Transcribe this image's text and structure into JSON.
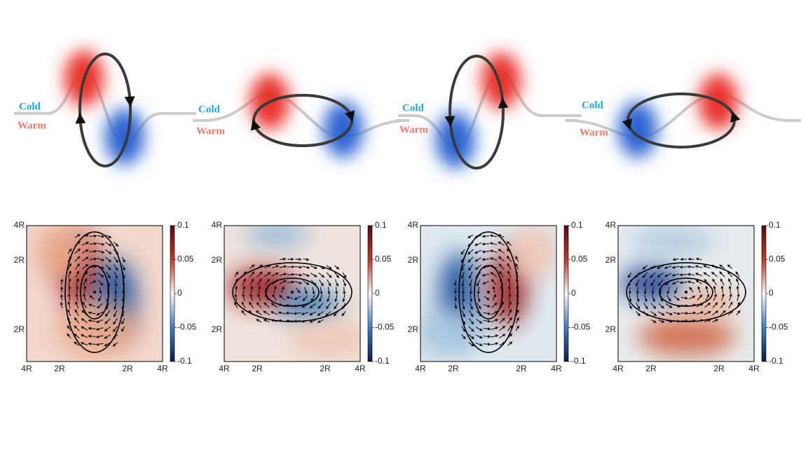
{
  "top_panels": [
    {
      "cold": "Cold",
      "warm": "Warm"
    },
    {
      "cold": "Cold",
      "warm": "Warm"
    },
    {
      "cold": "Cold",
      "warm": "Warm"
    },
    {
      "cold": "Cold",
      "warm": "Warm"
    }
  ],
  "bottom_panels": [
    {
      "y_ticks": [
        "4R",
        "2R",
        "2R"
      ],
      "x_ticks": [
        "4R",
        "2R",
        "2R",
        "4R"
      ],
      "colorbar_ticks": [
        "0.1",
        "0.05",
        "0",
        "-0.05",
        "-0.1"
      ]
    },
    {
      "y_ticks": [
        "4R",
        "2R",
        "2R"
      ],
      "x_ticks": [
        "4R",
        "2R",
        "2R",
        "4R"
      ],
      "colorbar_ticks": [
        "0.1",
        "0.05",
        "0",
        "-0.05",
        "-0.1"
      ]
    },
    {
      "y_ticks": [
        "4R",
        "2R",
        "2R"
      ],
      "x_ticks": [
        "4R",
        "2R",
        "2R",
        "4R"
      ],
      "colorbar_ticks": [
        "0.1",
        "0.05",
        "0",
        "-0.05",
        "-0.1"
      ]
    },
    {
      "y_ticks": [
        "4R",
        "2R",
        "2R"
      ],
      "x_ticks": [
        "4R",
        "2R",
        "2R",
        "4R"
      ],
      "colorbar_ticks": [
        "0.1",
        "0.05",
        "0",
        "-0.05",
        "-0.1"
      ]
    }
  ]
}
